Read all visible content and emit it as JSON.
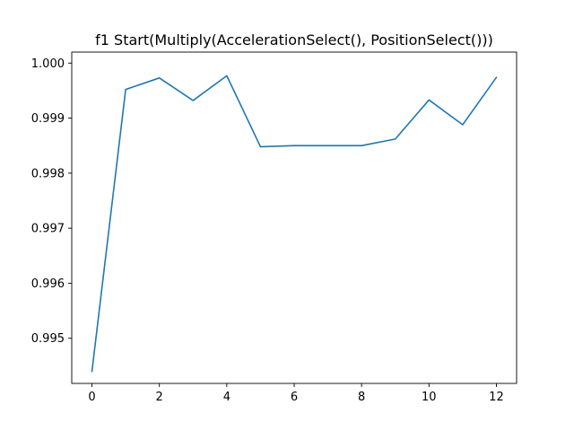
{
  "chart_data": {
    "type": "line",
    "title": "f1 Start(Multiply(AccelerationSelect(), PositionSelect()))",
    "xlabel": "",
    "ylabel": "",
    "x": [
      0,
      1,
      2,
      3,
      4,
      5,
      6,
      7,
      8,
      9,
      10,
      11,
      12
    ],
    "series": [
      {
        "values": [
          0.9944,
          0.99952,
          0.99973,
          0.99932,
          0.99977,
          0.99848,
          0.9985,
          0.9985,
          0.9985,
          0.99862,
          0.99933,
          0.99888,
          0.99974
        ],
        "color": "#1f77b4"
      }
    ],
    "xlim": [
      -0.6,
      12.6
    ],
    "ylim": [
      0.99418,
      1.0002
    ],
    "xticks": [
      0,
      2,
      4,
      6,
      8,
      10,
      12
    ],
    "xtick_labels": [
      "0",
      "2",
      "4",
      "6",
      "8",
      "10",
      "12"
    ],
    "yticks": [
      0.995,
      0.996,
      0.997,
      0.998,
      0.999,
      1.0
    ],
    "ytick_labels": [
      "0.995",
      "0.996",
      "0.997",
      "0.998",
      "0.999",
      "1.000"
    ],
    "grid": false,
    "legend": "none"
  }
}
